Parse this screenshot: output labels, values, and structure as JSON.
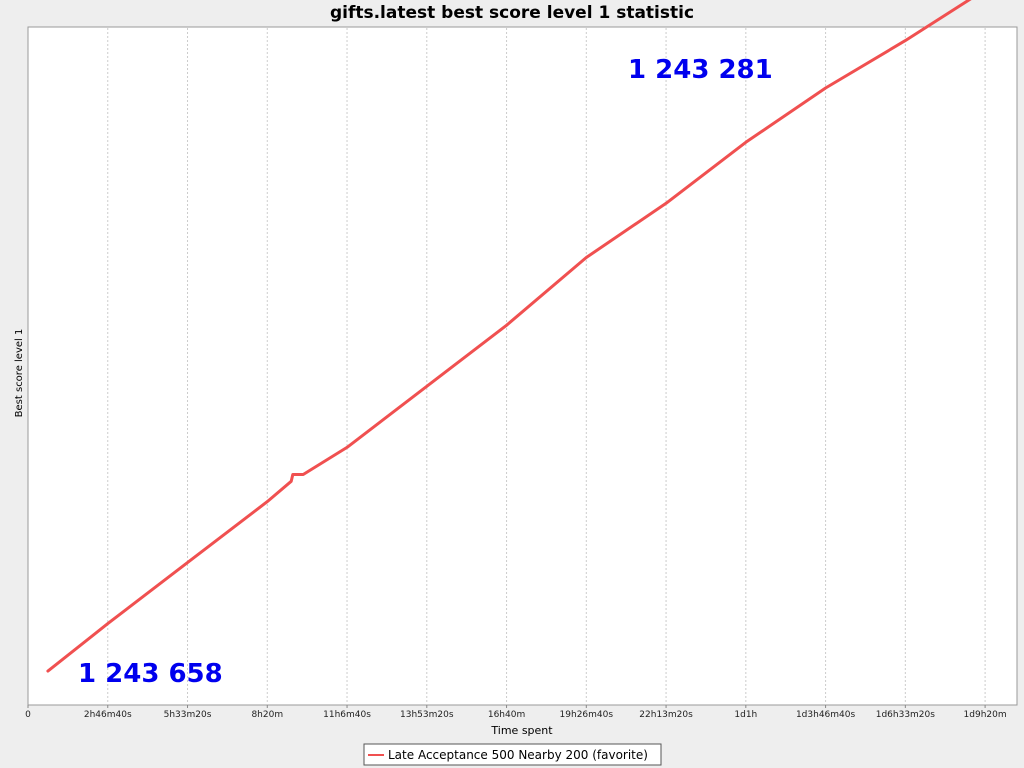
{
  "chart_data": {
    "type": "line",
    "title": "gifts.latest best score level 1 statistic",
    "xlabel": "Time spent",
    "ylabel": "Best score level 1",
    "x_unit": "seconds",
    "xlim": [
      0,
      124000
    ],
    "ylim": [
      0,
      100
    ],
    "grid": true,
    "legend_position": "bottom",
    "x_ticks": [
      {
        "value": 0,
        "label": "0"
      },
      {
        "value": 10000,
        "label": "2h46m40s"
      },
      {
        "value": 20000,
        "label": "5h33m20s"
      },
      {
        "value": 30000,
        "label": "8h20m"
      },
      {
        "value": 40000,
        "label": "11h6m40s"
      },
      {
        "value": 50000,
        "label": "13h53m20s"
      },
      {
        "value": 60000,
        "label": "16h40m"
      },
      {
        "value": 70000,
        "label": "19h26m40s"
      },
      {
        "value": 80000,
        "label": "22h13m20s"
      },
      {
        "value": 90000,
        "label": "1d1h"
      },
      {
        "value": 100000,
        "label": "1d3h46m40s"
      },
      {
        "value": 110000,
        "label": "1d6h33m20s"
      },
      {
        "value": 120000,
        "label": "1d9h20m"
      }
    ],
    "series": [
      {
        "name": "Late Acceptance 500 Nearby 200 (favorite)",
        "color": "#f05050",
        "x": [
          2500,
          10000,
          20000,
          30000,
          33000,
          33200,
          34500,
          40000,
          50000,
          60000,
          70000,
          80000,
          90000,
          100000,
          110000,
          122000
        ],
        "y": [
          5,
          12,
          21,
          30,
          33,
          34,
          34,
          38,
          47,
          56,
          66,
          74,
          83,
          91,
          98,
          107
        ]
      }
    ],
    "annotations": [
      {
        "text": "1 243 658",
        "color": "#0000ee"
      },
      {
        "text": "1 243 281",
        "color": "#0000ee"
      }
    ]
  }
}
